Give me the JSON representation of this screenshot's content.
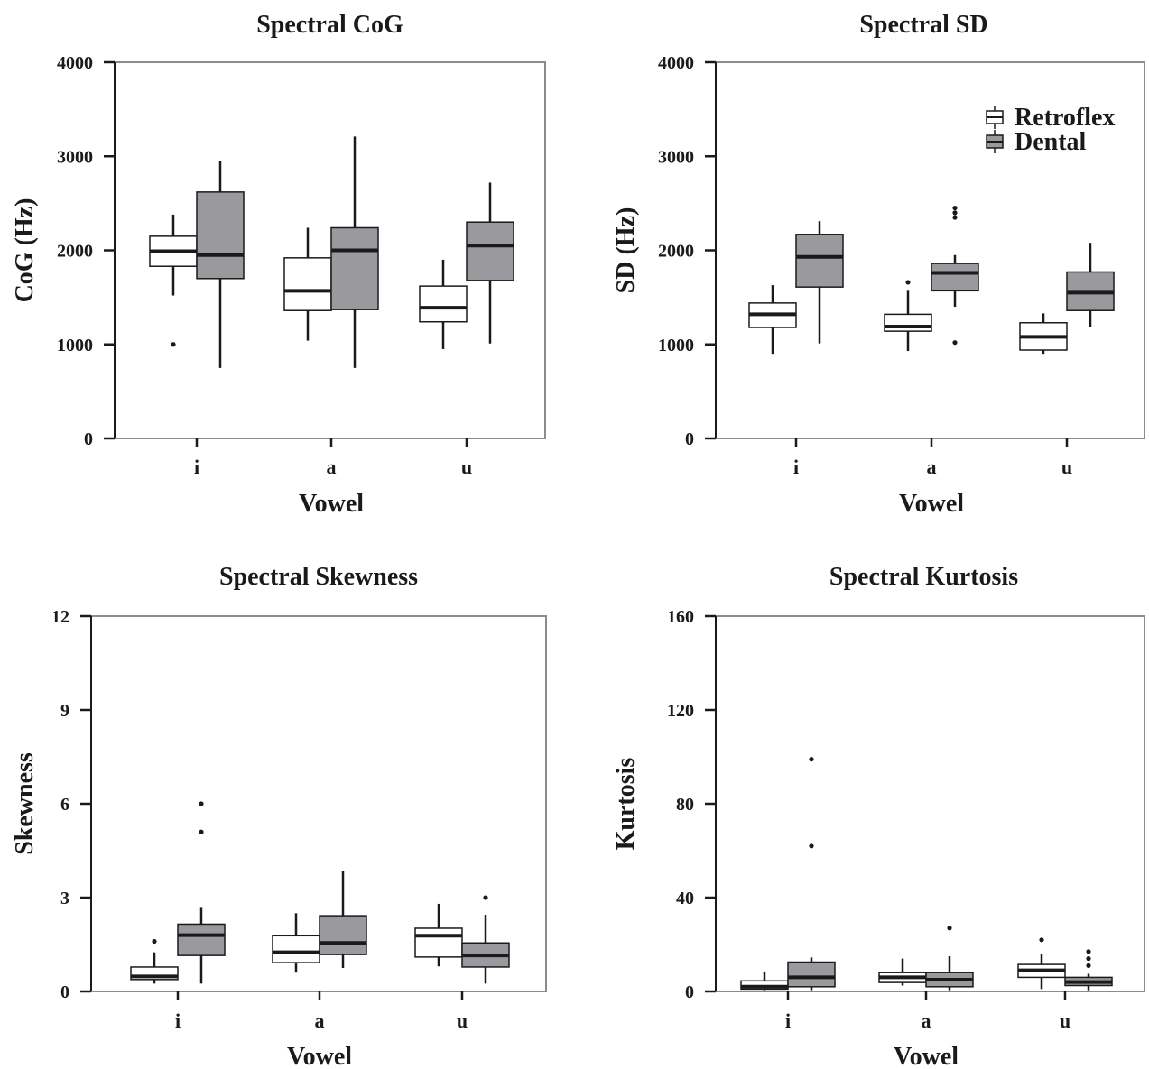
{
  "colors": {
    "Retroflex": "#ffffff",
    "Dental": "#9a9a9e",
    "stroke": "#1a1a1a",
    "frame": "#8c8c8c"
  },
  "chart_data": [
    {
      "type": "box",
      "title": "Spectral CoG",
      "xlabel": "Vowel",
      "ylabel": "CoG (Hz)",
      "ylim": [
        0,
        4000
      ],
      "yticks": [
        0,
        1000,
        2000,
        3000,
        4000
      ],
      "categories": [
        "i",
        "a",
        "u"
      ],
      "legend": {
        "shown": false
      },
      "series": [
        {
          "name": "Retroflex",
          "boxes": [
            {
              "whisker_low": 1520,
              "q1": 1830,
              "median": 1990,
              "q3": 2150,
              "whisker_high": 2380,
              "outliers": [
                1000
              ]
            },
            {
              "whisker_low": 1040,
              "q1": 1360,
              "median": 1570,
              "q3": 1920,
              "whisker_high": 2240,
              "outliers": []
            },
            {
              "whisker_low": 950,
              "q1": 1240,
              "median": 1390,
              "q3": 1620,
              "whisker_high": 1900,
              "outliers": []
            }
          ]
        },
        {
          "name": "Dental",
          "boxes": [
            {
              "whisker_low": 750,
              "q1": 1700,
              "median": 1950,
              "q3": 2620,
              "whisker_high": 2950,
              "outliers": []
            },
            {
              "whisker_low": 750,
              "q1": 1370,
              "median": 2000,
              "q3": 2240,
              "whisker_high": 3210,
              "outliers": []
            },
            {
              "whisker_low": 1010,
              "q1": 1680,
              "median": 2050,
              "q3": 2300,
              "whisker_high": 2720,
              "outliers": []
            }
          ]
        }
      ]
    },
    {
      "type": "box",
      "title": "Spectral SD",
      "xlabel": "Vowel",
      "ylabel": "SD (Hz)",
      "ylim": [
        0,
        4000
      ],
      "yticks": [
        0,
        1000,
        2000,
        3000,
        4000
      ],
      "categories": [
        "i",
        "a",
        "u"
      ],
      "legend": {
        "shown": true,
        "placement": "top-right",
        "entries": [
          "Retroflex",
          "Dental"
        ]
      },
      "series": [
        {
          "name": "Retroflex",
          "boxes": [
            {
              "whisker_low": 900,
              "q1": 1180,
              "median": 1320,
              "q3": 1440,
              "whisker_high": 1630,
              "outliers": []
            },
            {
              "whisker_low": 930,
              "q1": 1140,
              "median": 1190,
              "q3": 1320,
              "whisker_high": 1570,
              "outliers": [
                1660
              ]
            },
            {
              "whisker_low": 900,
              "q1": 940,
              "median": 1080,
              "q3": 1230,
              "whisker_high": 1330,
              "outliers": []
            }
          ]
        },
        {
          "name": "Dental",
          "boxes": [
            {
              "whisker_low": 1010,
              "q1": 1610,
              "median": 1930,
              "q3": 2170,
              "whisker_high": 2310,
              "outliers": []
            },
            {
              "whisker_low": 1400,
              "q1": 1570,
              "median": 1760,
              "q3": 1860,
              "whisker_high": 1950,
              "outliers": [
                1020,
                2350,
                2400,
                2450
              ]
            },
            {
              "whisker_low": 1180,
              "q1": 1360,
              "median": 1550,
              "q3": 1770,
              "whisker_high": 2080,
              "outliers": []
            }
          ]
        }
      ]
    },
    {
      "type": "box",
      "title": "Spectral Skewness",
      "xlabel": "Vowel",
      "ylabel": "Skewness",
      "ylim": [
        0,
        12
      ],
      "yticks": [
        0,
        3,
        6,
        9,
        12
      ],
      "categories": [
        "i",
        "a",
        "u"
      ],
      "legend": {
        "shown": false
      },
      "series": [
        {
          "name": "Retroflex",
          "boxes": [
            {
              "whisker_low": 0.25,
              "q1": 0.38,
              "median": 0.48,
              "q3": 0.78,
              "whisker_high": 1.25,
              "outliers": [
                1.6
              ]
            },
            {
              "whisker_low": 0.6,
              "q1": 0.92,
              "median": 1.25,
              "q3": 1.78,
              "whisker_high": 2.5,
              "outliers": []
            },
            {
              "whisker_low": 0.8,
              "q1": 1.1,
              "median": 1.78,
              "q3": 2.02,
              "whisker_high": 2.8,
              "outliers": []
            }
          ]
        },
        {
          "name": "Dental",
          "boxes": [
            {
              "whisker_low": 0.25,
              "q1": 1.15,
              "median": 1.8,
              "q3": 2.15,
              "whisker_high": 2.7,
              "outliers": [
                5.1,
                6.0
              ]
            },
            {
              "whisker_low": 0.75,
              "q1": 1.18,
              "median": 1.55,
              "q3": 2.42,
              "whisker_high": 3.85,
              "outliers": []
            },
            {
              "whisker_low": 0.25,
              "q1": 0.78,
              "median": 1.15,
              "q3": 1.55,
              "whisker_high": 2.45,
              "outliers": [
                3.0
              ]
            }
          ]
        }
      ]
    },
    {
      "type": "box",
      "title": "Spectral Kurtosis",
      "xlabel": "Vowel",
      "ylabel": "Kurtosis",
      "ylim": [
        0,
        160
      ],
      "yticks": [
        0,
        40,
        80,
        120,
        160
      ],
      "categories": [
        "i",
        "a",
        "u"
      ],
      "legend": {
        "shown": false
      },
      "series": [
        {
          "name": "Retroflex",
          "boxes": [
            {
              "whisker_low": 0.5,
              "q1": 1,
              "median": 2,
              "q3": 4.5,
              "whisker_high": 8.5,
              "outliers": []
            },
            {
              "whisker_low": 2.5,
              "q1": 3.8,
              "median": 6,
              "q3": 8,
              "whisker_high": 14,
              "outliers": []
            },
            {
              "whisker_low": 1,
              "q1": 6,
              "median": 9,
              "q3": 11.5,
              "whisker_high": 16,
              "outliers": [
                22
              ]
            }
          ]
        },
        {
          "name": "Dental",
          "boxes": [
            {
              "whisker_low": 0.5,
              "q1": 2,
              "median": 6,
              "q3": 12.5,
              "whisker_high": 14.5,
              "outliers": [
                62,
                99
              ]
            },
            {
              "whisker_low": 0.5,
              "q1": 2,
              "median": 5,
              "q3": 8,
              "whisker_high": 15,
              "outliers": [
                27
              ]
            },
            {
              "whisker_low": 0.5,
              "q1": 2.5,
              "median": 4,
              "q3": 6,
              "whisker_high": 7.5,
              "outliers": [
                11,
                14,
                17
              ]
            }
          ]
        }
      ]
    }
  ]
}
